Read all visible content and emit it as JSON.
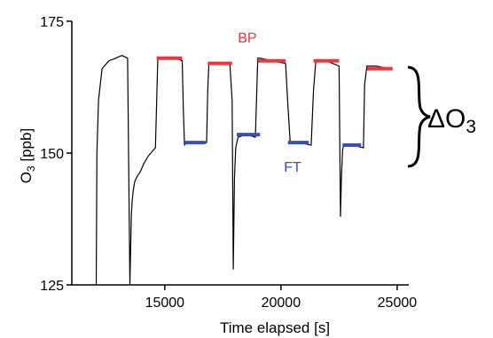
{
  "chart_data": {
    "type": "line",
    "title": "",
    "xlabel": "Time elapsed [s]",
    "ylabel_main": "O",
    "ylabel_sub": "3",
    "ylabel_unit": " [ppb]",
    "xlim": [
      11000,
      25500
    ],
    "ylim": [
      125,
      175
    ],
    "x_ticks": [
      15000,
      20000,
      25000
    ],
    "y_ticks": [
      125,
      150,
      175
    ],
    "x_tick_labels": [
      "15000",
      "20000",
      "25000"
    ],
    "y_tick_labels": [
      "125",
      "150",
      "175"
    ],
    "grid": false,
    "series": [
      {
        "color": "#000000",
        "x": [
          12050,
          12080,
          12150,
          12300,
          12600,
          12900,
          13150,
          13400,
          13500,
          13560,
          13600,
          13650,
          13700,
          13800,
          13950,
          14100,
          14300,
          14500,
          14600,
          14650,
          14700,
          15000,
          15500,
          15750,
          15800,
          15850,
          15900,
          16300,
          16800,
          16850,
          16900,
          17300,
          17800,
          17900,
          17950,
          18000,
          18050,
          18150,
          18500,
          18900,
          19000,
          19100,
          19600,
          20200,
          20300,
          20400,
          20800,
          21300,
          21400,
          21500,
          21950,
          22500,
          22560,
          22600,
          22650,
          22700,
          23100,
          23550,
          23600,
          23700,
          24100,
          24700,
          24800
        ],
        "y": [
          125,
          150,
          160,
          166,
          167.5,
          168,
          168.5,
          168,
          125,
          138,
          141,
          143,
          144.5,
          145.5,
          146.5,
          148,
          149.5,
          150.5,
          151,
          160,
          168,
          168,
          168,
          167.5,
          158,
          151.5,
          152,
          152,
          152,
          162,
          167,
          167,
          167,
          160,
          128,
          145,
          151,
          153,
          153.5,
          153,
          168,
          168,
          167.5,
          167,
          159,
          152,
          152,
          151.5,
          162,
          167.5,
          167.5,
          166.5,
          138,
          145,
          150.5,
          151.5,
          151.5,
          151,
          163,
          166.5,
          166.5,
          166,
          166
        ]
      }
    ],
    "bp_segments": [
      {
        "x": [
          14650,
          15750
        ],
        "y": 168
      },
      {
        "x": [
          16850,
          17900
        ],
        "y": 167
      },
      {
        "x": [
          19000,
          20200
        ],
        "y": 167.5
      },
      {
        "x": [
          21400,
          22500
        ],
        "y": 167.5
      },
      {
        "x": [
          23700,
          24800
        ],
        "y": 166
      }
    ],
    "ft_segments": [
      {
        "x": [
          15850,
          16750
        ],
        "y": 152
      },
      {
        "x": [
          18100,
          19100
        ],
        "y": 153.5
      },
      {
        "x": [
          20300,
          21200
        ],
        "y": 152
      },
      {
        "x": [
          22650,
          23450
        ],
        "y": 151.5
      }
    ],
    "annotations": {
      "bp": {
        "text": "BP",
        "color": "#e8383d",
        "x": 18550,
        "y": 171
      },
      "ft": {
        "text": "FT",
        "color": "#3b4fb0",
        "x": 20500,
        "y": 146.5
      },
      "delta": {
        "symbol": "Δ",
        "base": "O",
        "sub": "3"
      }
    },
    "colors": {
      "line": "#000000",
      "bp": "#e8383d",
      "ft": "#3b4fb0"
    }
  }
}
